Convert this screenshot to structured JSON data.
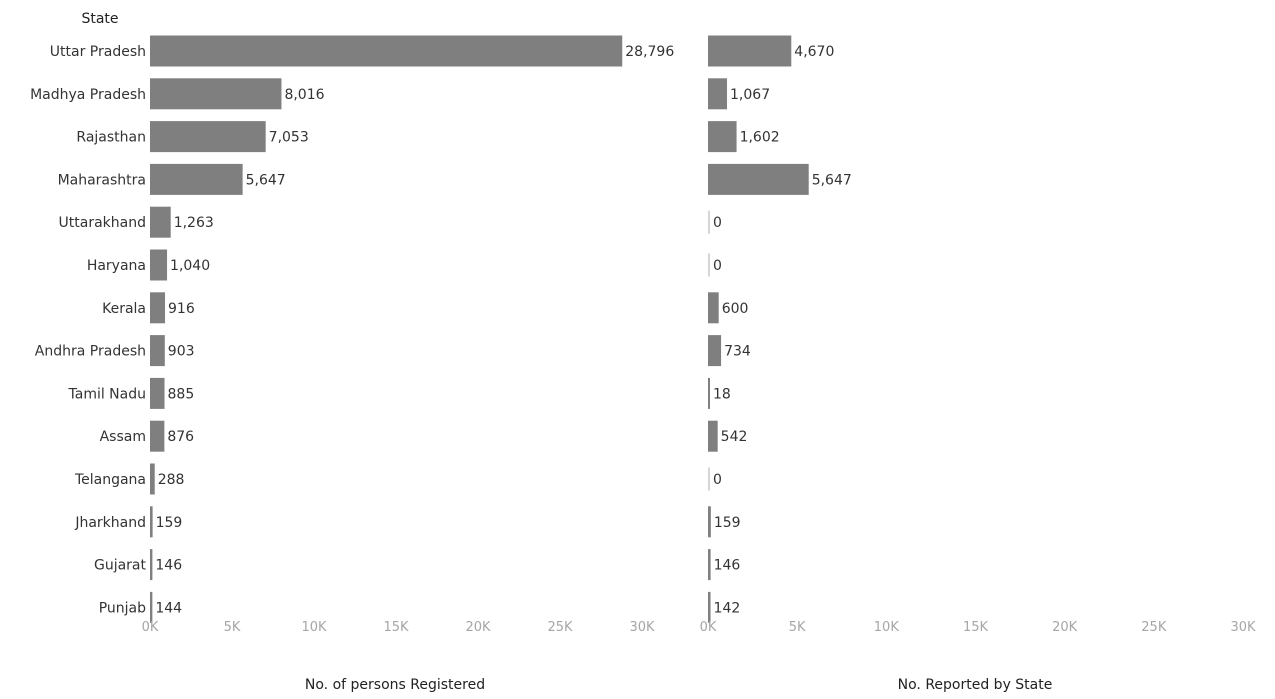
{
  "chart_data": {
    "type": "bar",
    "orientation": "horizontal",
    "row_header": "State",
    "categories": [
      "Uttar Pradesh",
      "Madhya Pradesh",
      "Rajasthan",
      "Maharashtra",
      "Uttarakhand",
      "Haryana",
      "Kerala",
      "Andhra Pradesh",
      "Tamil Nadu",
      "Assam",
      "Telangana",
      "Jharkhand",
      "Gujarat",
      "Punjab"
    ],
    "bar_color": "#7f7f7f",
    "panels": [
      {
        "xlabel": "No. of persons Registered",
        "values": [
          28796,
          8016,
          7053,
          5647,
          1263,
          1040,
          916,
          903,
          885,
          876,
          288,
          159,
          146,
          144
        ],
        "value_labels": [
          "28,796",
          "8,016",
          "7,053",
          "5,647",
          "1,263",
          "1,040",
          "916",
          "903",
          "885",
          "876",
          "288",
          "159",
          "146",
          "144"
        ],
        "xlim": [
          0,
          30000
        ],
        "ticks": [
          0,
          5000,
          10000,
          15000,
          20000,
          25000,
          30000
        ],
        "tick_labels": [
          "0K",
          "5K",
          "10K",
          "15K",
          "20K",
          "25K",
          "30K"
        ]
      },
      {
        "xlabel": "No. Reported by State",
        "values": [
          4670,
          1067,
          1602,
          5647,
          0,
          0,
          600,
          734,
          18,
          542,
          0,
          159,
          146,
          142
        ],
        "value_labels": [
          "4,670",
          "1,067",
          "1,602",
          "5,647",
          "0",
          "0",
          "600",
          "734",
          "18",
          "542",
          "0",
          "159",
          "146",
          "142"
        ],
        "xlim": [
          0,
          30000
        ],
        "ticks": [
          0,
          5000,
          10000,
          15000,
          20000,
          25000,
          30000
        ],
        "tick_labels": [
          "0K",
          "5K",
          "10K",
          "15K",
          "20K",
          "25K",
          "30K"
        ]
      }
    ]
  }
}
